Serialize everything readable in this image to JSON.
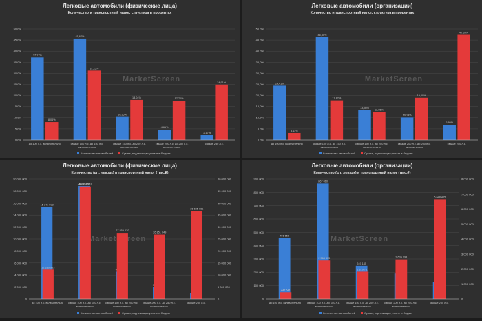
{
  "colors": {
    "blue": "#3a7fd6",
    "red": "#e43a3a",
    "text": "#e6e6e6",
    "axis": "#c8c8c8",
    "grid": "#4a4a4a",
    "watermark": "#575757"
  },
  "watermark": "MarketScreen",
  "legend": {
    "blue": "Количество автомобилей",
    "red": "Сумма, подлежащая уплате в бюджет"
  },
  "categories": [
    "до 100 л.с. включительно",
    "свыше 100 л.с. до 150 л.с. включительно",
    "свыше 150 л.с. до 200 л.с. включительно",
    "свыше 200 л.с. до 250 л.с. включительно",
    "свыше 250 л.с."
  ],
  "chart_data": [
    {
      "type": "bar",
      "title": "Легковые автомобили (физические лица)",
      "subtitle": "Количество и транспортный налог, структура в процентах",
      "ylim": [
        0,
        50
      ],
      "yticks": [
        "0,0%",
        "5,0%",
        "10,0%",
        "15,0%",
        "20,0%",
        "25,0%",
        "30,0%",
        "35,0%",
        "40,0%",
        "45,0%",
        "50,0%"
      ],
      "series": [
        {
          "name": "Количество автомобилей",
          "values": [
            37.17,
            45.67,
            10.36,
            4.61,
            2.17
          ],
          "labels": [
            "37,17%",
            "45,67%",
            "10,36%",
            "4,61%",
            "2,17%"
          ]
        },
        {
          "name": "Сумма, подлежащая уплате в бюджет",
          "values": [
            8.06,
            31.25,
            18.04,
            17.7,
            24.91
          ],
          "labels": [
            "8,06%",
            "31,25%",
            "18,04%",
            "17,70%",
            "24,91%"
          ]
        }
      ]
    },
    {
      "type": "bar",
      "title": "Легковые автомобили (организации)",
      "subtitle": "Количество и транспортный налог, структура в процентах",
      "ylim": [
        0,
        50
      ],
      "yticks": [
        "0,0%",
        "5,0%",
        "10,0%",
        "15,0%",
        "20,0%",
        "25,0%",
        "30,0%",
        "35,0%",
        "40,0%",
        "45,0%",
        "50,0%"
      ],
      "series": [
        {
          "name": "Количество автомобилей",
          "values": [
            24.41,
            46.35,
            13.36,
            10.14,
            6.8
          ],
          "labels": [
            "24,41%",
            "46,35%",
            "13,36%",
            "10,14%",
            "6,80%"
          ]
        },
        {
          "name": "Сумма, подлежащая уплате в бюджет",
          "values": [
            3.11,
            17.82,
            12.65,
            19.0,
            47.35
          ],
          "labels": [
            "3,11%",
            "17,82%",
            "12,65%",
            "19,00%",
            "47,35%"
          ]
        }
      ]
    },
    {
      "type": "bar",
      "title": "Легковые автомобили (физические лица)",
      "subtitle": "Количество (шт, лев.шк) и транспортный налог (тыс.₽)",
      "ylim": [
        0,
        20000000
      ],
      "ylim_right": [
        0,
        50000000
      ],
      "yticks": [
        "0",
        "2 000 000",
        "4 000 000",
        "6 000 000",
        "8 000 000",
        "10 000 000",
        "12 000 000",
        "14 000 000",
        "16 000 000",
        "18 000 000",
        "20 000 000"
      ],
      "yticks_right": [
        "0",
        "5 000 000",
        "10 000 000",
        "15 000 000",
        "20 000 000",
        "25 000 000",
        "30 000 000",
        "35 000 000",
        "40 000 000",
        "45 000 000",
        "50 000 000"
      ],
      "series": [
        {
          "name": "Количество автомобилей",
          "axis": "left",
          "values": [
            15341592,
            18857031,
            4553414,
            2024729,
            951265
          ],
          "labels": [
            "15 341 592",
            "18 857 031",
            "4 553 414",
            "2 024 729",
            "951 265"
          ]
        },
        {
          "name": "Сумма, подлежащая уплате в бюджет",
          "axis": "right",
          "values": [
            12280953,
            46914551,
            27559630,
            26851049,
            36685961
          ],
          "labels": [
            "12 280 953",
            "46 914 551",
            "27 559 630",
            "26 851 049",
            "36 685 961"
          ]
        }
      ]
    },
    {
      "type": "bar",
      "title": "Легковые автомобили (организации)",
      "subtitle": "Количество (шт, лев.шк) и транспортный налог (тыс.₽)",
      "ylim": [
        0,
        900000
      ],
      "ylim_right": [
        0,
        8000000
      ],
      "yticks": [
        "0",
        "100 000",
        "200 000",
        "300 000",
        "400 000",
        "500 000",
        "600 000",
        "700 000",
        "800 000",
        "900 000"
      ],
      "yticks_right": [
        "0",
        "1 000 000",
        "2 000 000",
        "3 000 000",
        "4 000 000",
        "5 000 000",
        "6 000 000",
        "7 000 000",
        "8 000 000"
      ],
      "series": [
        {
          "name": "Количество автомобилей",
          "axis": "left",
          "values": [
            456656,
            867060,
            249145,
            190250,
            127436
          ],
          "labels": [
            "456 656",
            "867 060",
            "249 145",
            "190 250",
            "127 436"
          ]
        },
        {
          "name": "Сумма, подлежащая уплате в бюджет",
          "axis": "right",
          "values": [
            447541,
            2564403,
            1819781,
            2635998,
            6648465
          ],
          "labels": [
            "447 541",
            "2 564 403",
            "1 819 781",
            "2 635 998",
            "6 648 465"
          ]
        }
      ]
    }
  ]
}
